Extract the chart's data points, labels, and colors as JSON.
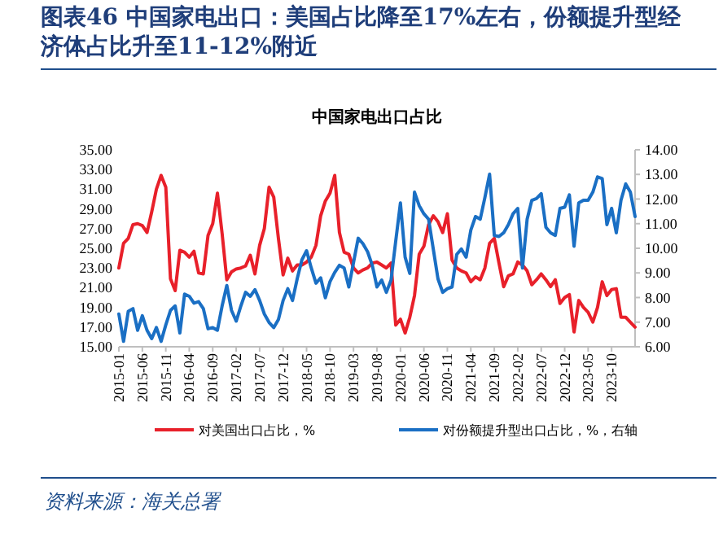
{
  "chart_data": {
    "type": "line",
    "title": "图表46 中国家电出口：美国占比降至17%左右，份额提升型经济体占比升至11-12%附近",
    "subtitle": "中国家电出口占比",
    "annotations": [
      "资料来源：海关总署"
    ],
    "x": [
      "2015-01",
      "2015-02",
      "2015-03",
      "2015-04",
      "2015-05",
      "2015-06",
      "2015-07",
      "2015-08",
      "2015-09",
      "2015-10",
      "2015-11",
      "2015-12",
      "2016-01",
      "2016-02",
      "2016-03",
      "2016-04",
      "2016-05",
      "2016-06",
      "2016-07",
      "2016-08",
      "2016-09",
      "2016-10",
      "2016-11",
      "2016-12",
      "2017-01",
      "2017-02",
      "2017-03",
      "2017-04",
      "2017-05",
      "2017-06",
      "2017-07",
      "2017-08",
      "2017-09",
      "2017-10",
      "2017-11",
      "2017-12",
      "2018-01",
      "2018-02",
      "2018-03",
      "2018-04",
      "2018-05",
      "2018-06",
      "2018-07",
      "2018-08",
      "2018-09",
      "2018-10",
      "2018-11",
      "2018-12",
      "2019-01",
      "2019-02",
      "2019-03",
      "2019-04",
      "2019-05",
      "2019-06",
      "2019-07",
      "2019-08",
      "2019-09",
      "2019-10",
      "2019-11",
      "2019-12",
      "2020-01",
      "2020-02",
      "2020-03",
      "2020-04",
      "2020-05",
      "2020-06",
      "2020-07",
      "2020-08",
      "2020-09",
      "2020-10",
      "2020-11",
      "2020-12",
      "2021-01",
      "2021-02",
      "2021-03",
      "2021-04",
      "2021-05",
      "2021-06",
      "2021-07",
      "2021-08",
      "2021-09",
      "2021-10",
      "2021-11",
      "2021-12",
      "2022-01",
      "2022-02",
      "2022-03",
      "2022-04",
      "2022-05",
      "2022-06",
      "2022-07",
      "2022-08",
      "2022-09",
      "2022-10",
      "2022-11",
      "2022-12",
      "2023-01",
      "2023-02",
      "2023-03",
      "2023-04",
      "2023-05",
      "2023-06",
      "2023-07",
      "2023-08",
      "2023-09",
      "2023-10",
      "2023-11",
      "2023-12",
      "2024-01",
      "2024-02",
      "2024-03"
    ],
    "series": [
      {
        "name": "对美国出口占比，%",
        "color": "#e8202a",
        "values": [
          23.0,
          25.5,
          26.0,
          27.4,
          27.5,
          27.3,
          26.6,
          28.7,
          31.0,
          32.4,
          31.2,
          21.9,
          20.7,
          24.8,
          24.6,
          24.1,
          24.7,
          22.5,
          22.4,
          26.3,
          27.5,
          30.6,
          26.5,
          21.8,
          22.6,
          22.9,
          23.0,
          23.2,
          24.3,
          22.4,
          25.3,
          27.0,
          31.2,
          30.2,
          26.0,
          22.3,
          24.0,
          22.7,
          23.3,
          23.3,
          23.6,
          24.1,
          25.3,
          28.3,
          29.8,
          30.6,
          32.4,
          26.6,
          24.6,
          24.4,
          23.0,
          22.5,
          22.8,
          23.0,
          23.5,
          23.6,
          23.3,
          23.0,
          23.5,
          17.2,
          17.8,
          16.4,
          18.0,
          20.2,
          24.4,
          25.2,
          27.4,
          28.3,
          27.7,
          26.6,
          28.5,
          23.8,
          23.0,
          22.7,
          22.5,
          21.6,
          22.1,
          21.8,
          23.0,
          25.5,
          26.0,
          23.5,
          21.1,
          22.2,
          22.4,
          23.6,
          23.3,
          22.7,
          21.3,
          21.8,
          22.4,
          21.8,
          21.1,
          21.8,
          19.4,
          20.0,
          20.3,
          16.5,
          19.7,
          19.0,
          18.5,
          17.5,
          19.0,
          21.6,
          20.2,
          20.8,
          20.9,
          18.0,
          18.0,
          17.5,
          17.0
        ]
      },
      {
        "name": "对份额提升型出口占比，%，右轴",
        "color": "#1a6fc4",
        "axis": "y2",
        "values": [
          7.33,
          6.22,
          7.44,
          7.55,
          6.67,
          7.26,
          6.67,
          6.33,
          6.78,
          6.22,
          6.89,
          7.48,
          7.66,
          6.56,
          8.14,
          8.05,
          7.77,
          7.83,
          7.55,
          6.73,
          6.78,
          6.67,
          7.66,
          8.49,
          7.48,
          7.04,
          7.66,
          8.21,
          8.05,
          8.32,
          7.88,
          7.33,
          6.99,
          6.78,
          7.11,
          7.88,
          8.36,
          7.88,
          8.76,
          9.53,
          9.9,
          9.2,
          8.58,
          8.8,
          7.99,
          8.65,
          9.02,
          9.31,
          9.2,
          8.43,
          9.42,
          10.41,
          10.19,
          9.86,
          9.31,
          8.43,
          8.71,
          8.21,
          8.71,
          10.3,
          11.84,
          9.64,
          8.98,
          12.28,
          11.73,
          11.4,
          11.18,
          9.97,
          8.76,
          8.21,
          8.36,
          8.43,
          9.75,
          9.97,
          9.64,
          10.74,
          11.29,
          11.18,
          12.06,
          13.01,
          10.52,
          10.48,
          10.63,
          10.96,
          11.4,
          11.62,
          9.2,
          11.18,
          11.95,
          12.02,
          12.22,
          10.85,
          10.63,
          10.52,
          11.62,
          11.67,
          12.17,
          10.08,
          11.84,
          11.95,
          11.95,
          12.28,
          12.9,
          12.83,
          10.96,
          11.62,
          10.63,
          11.95,
          12.61,
          12.28,
          11.29
        ]
      }
    ],
    "xlim": [
      "2015-01",
      "2024-03"
    ],
    "xticks": [
      "2015-01",
      "2015-06",
      "2015-11",
      "2016-04",
      "2016-09",
      "2017-02",
      "2017-07",
      "2017-12",
      "2018-05",
      "2018-10",
      "2019-03",
      "2019-08",
      "2020-01",
      "2020-06",
      "2020-11",
      "2021-04",
      "2021-09",
      "2022-02",
      "2022-07",
      "2022-12",
      "2023-05",
      "2023-10"
    ],
    "ylim": [
      15,
      35
    ],
    "yticks": [
      {
        "value": 15,
        "label": "15.00"
      },
      {
        "value": 17,
        "label": "17.00"
      },
      {
        "value": 19,
        "label": "19.00"
      },
      {
        "value": 21,
        "label": "21.00"
      },
      {
        "value": 23,
        "label": "23.00"
      },
      {
        "value": 25,
        "label": "25.00"
      },
      {
        "value": 27,
        "label": "27.00"
      },
      {
        "value": 29,
        "label": "29.00"
      },
      {
        "value": 31,
        "label": "31.00"
      },
      {
        "value": 33,
        "label": "33.00"
      },
      {
        "value": 35,
        "label": "35.00"
      }
    ],
    "y2lim": [
      6,
      14
    ],
    "y2ticks": [
      {
        "value": 6,
        "label": "6.00"
      },
      {
        "value": 7,
        "label": "7.00"
      },
      {
        "value": 8,
        "label": "8.00"
      },
      {
        "value": 9,
        "label": "9.00"
      },
      {
        "value": 10,
        "label": "10.00"
      },
      {
        "value": 11,
        "label": "11.00"
      },
      {
        "value": 12,
        "label": "12.00"
      },
      {
        "value": 13,
        "label": "13.00"
      },
      {
        "value": 14,
        "label": "14.00"
      }
    ],
    "legend": "bottom"
  }
}
